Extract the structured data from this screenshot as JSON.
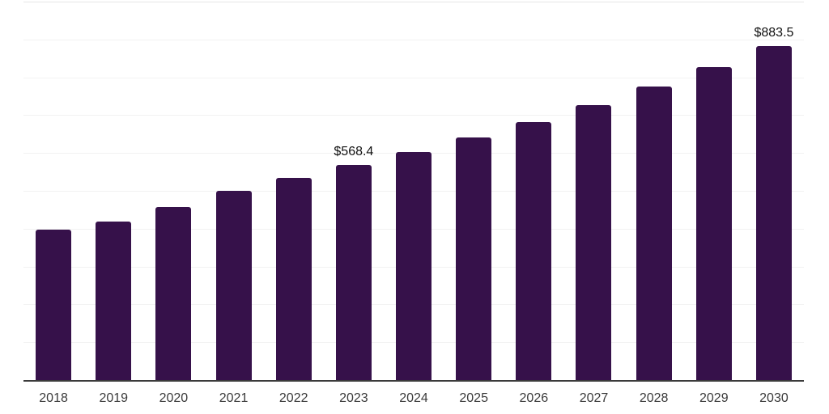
{
  "chart_data": {
    "type": "bar",
    "title": "",
    "xlabel": "",
    "ylabel": "",
    "categories": [
      "2018",
      "2019",
      "2020",
      "2021",
      "2022",
      "2023",
      "2024",
      "2025",
      "2026",
      "2027",
      "2028",
      "2029",
      "2030"
    ],
    "values": [
      397.6,
      418.3,
      456.7,
      499.4,
      533.3,
      568.4,
      601.9,
      640.9,
      681.9,
      725.8,
      775.3,
      826.8,
      883.5
    ],
    "data_labels": {
      "2023": "$568.4",
      "2030": "$883.5"
    },
    "value_prefix": "$",
    "ylim": [
      0,
      1000
    ],
    "gridline_step": 100,
    "grid": "horizontal",
    "legend_position": "none",
    "colors": {
      "background": "#ffffff",
      "bar": "#36114A",
      "gridline": "#f2f2f2",
      "top_gridline": "#e6e6e6",
      "axis_line": "#3b3b3b",
      "x_tick_label": "#3a3a3a",
      "data_label": "#111111"
    }
  }
}
